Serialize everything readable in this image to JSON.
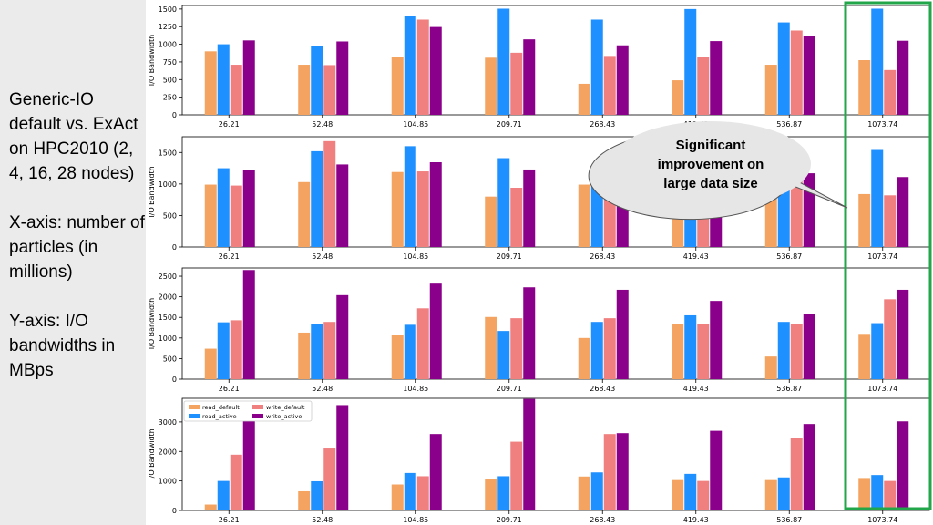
{
  "sidebar": {
    "paragraphs": [
      "Generic-IO default vs. ExAct on HPC2010 (2, 4, 16, 28 nodes)",
      "X-axis: number of particles (in millions)",
      "Y-axis: I/O bandwidths in MBps"
    ]
  },
  "callout": {
    "lines": [
      "Significant",
      "improvement on",
      "large data size"
    ]
  },
  "colors": {
    "read_default": "#f4a460",
    "read_active": "#1e90ff",
    "write_default": "#f08080",
    "write_active": "#8b008b",
    "highlight": "#22a64a"
  },
  "chart_data": [
    {
      "type": "bar",
      "ylabel": "I/O Bandwidth",
      "categories": [
        "26.21",
        "52.48",
        "104.85",
        "209.71",
        "268.43",
        "419.43",
        "536.87",
        "1073.74"
      ],
      "ylim": [
        0,
        1550
      ],
      "yticks": [
        0,
        250,
        500,
        750,
        1000,
        1250,
        1500
      ],
      "series": [
        {
          "key": "read_default",
          "values": [
            900,
            710,
            815,
            810,
            440,
            490,
            710,
            775
          ]
        },
        {
          "key": "read_active",
          "values": [
            1000,
            980,
            1395,
            1505,
            1350,
            1500,
            1310,
            1505
          ]
        },
        {
          "key": "write_default",
          "values": [
            710,
            705,
            1350,
            880,
            835,
            815,
            1195,
            635
          ]
        },
        {
          "key": "write_active",
          "values": [
            1055,
            1040,
            1245,
            1070,
            985,
            1045,
            1115,
            1050
          ]
        }
      ]
    },
    {
      "type": "bar",
      "ylabel": "I/O Bandwidth",
      "categories": [
        "26.21",
        "52.48",
        "104.85",
        "209.71",
        "268.43",
        "419.43",
        "536.87",
        "1073.74"
      ],
      "ylim": [
        0,
        1750
      ],
      "yticks": [
        0,
        500,
        1000,
        1500
      ],
      "series": [
        {
          "key": "read_default",
          "values": [
            990,
            1030,
            1190,
            800,
            990,
            810,
            990,
            840
          ]
        },
        {
          "key": "read_active",
          "values": [
            1250,
            1520,
            1600,
            1410,
            1270,
            1000,
            1430,
            1540
          ]
        },
        {
          "key": "write_default",
          "values": [
            975,
            1680,
            1200,
            940,
            990,
            860,
            1080,
            820
          ]
        },
        {
          "key": "write_active",
          "values": [
            1220,
            1310,
            1345,
            1230,
            1230,
            1200,
            1170,
            1110
          ]
        }
      ]
    },
    {
      "type": "bar",
      "ylabel": "I/O Bandwidth",
      "categories": [
        "26.21",
        "52.48",
        "104.85",
        "209.71",
        "268.43",
        "419.43",
        "536.87",
        "1073.74"
      ],
      "ylim": [
        0,
        2700
      ],
      "yticks": [
        0,
        500,
        1000,
        1500,
        2000,
        2500
      ],
      "series": [
        {
          "key": "read_default",
          "values": [
            740,
            1130,
            1070,
            1510,
            1000,
            1350,
            550,
            1100
          ]
        },
        {
          "key": "read_active",
          "values": [
            1380,
            1330,
            1320,
            1170,
            1390,
            1550,
            1390,
            1360
          ]
        },
        {
          "key": "write_default",
          "values": [
            1430,
            1390,
            1720,
            1480,
            1480,
            1330,
            1330,
            1940
          ]
        },
        {
          "key": "write_active",
          "values": [
            2650,
            2040,
            2320,
            2230,
            2170,
            1900,
            1580,
            2170
          ]
        }
      ]
    },
    {
      "type": "bar",
      "ylabel": "I/O Bandwidth",
      "categories": [
        "26.21",
        "52.48",
        "104.85",
        "209.71",
        "268.43",
        "419.43",
        "536.87",
        "1073.74"
      ],
      "ylim": [
        0,
        3800
      ],
      "yticks": [
        0,
        1000,
        2000,
        3000
      ],
      "legend": {
        "placement": "top-left",
        "entries": [
          "read_default",
          "read_active",
          "write_default",
          "write_active"
        ]
      },
      "series": [
        {
          "key": "read_default",
          "values": [
            200,
            650,
            880,
            1050,
            1150,
            1030,
            1030,
            1100
          ]
        },
        {
          "key": "read_active",
          "values": [
            1000,
            990,
            1270,
            1160,
            1290,
            1240,
            1120,
            1200
          ]
        },
        {
          "key": "write_default",
          "values": [
            1890,
            2100,
            1160,
            2330,
            2590,
            1000,
            2470,
            1000
          ]
        },
        {
          "key": "write_active",
          "values": [
            3120,
            3570,
            2590,
            3780,
            2620,
            2700,
            2930,
            3020
          ]
        }
      ]
    }
  ]
}
